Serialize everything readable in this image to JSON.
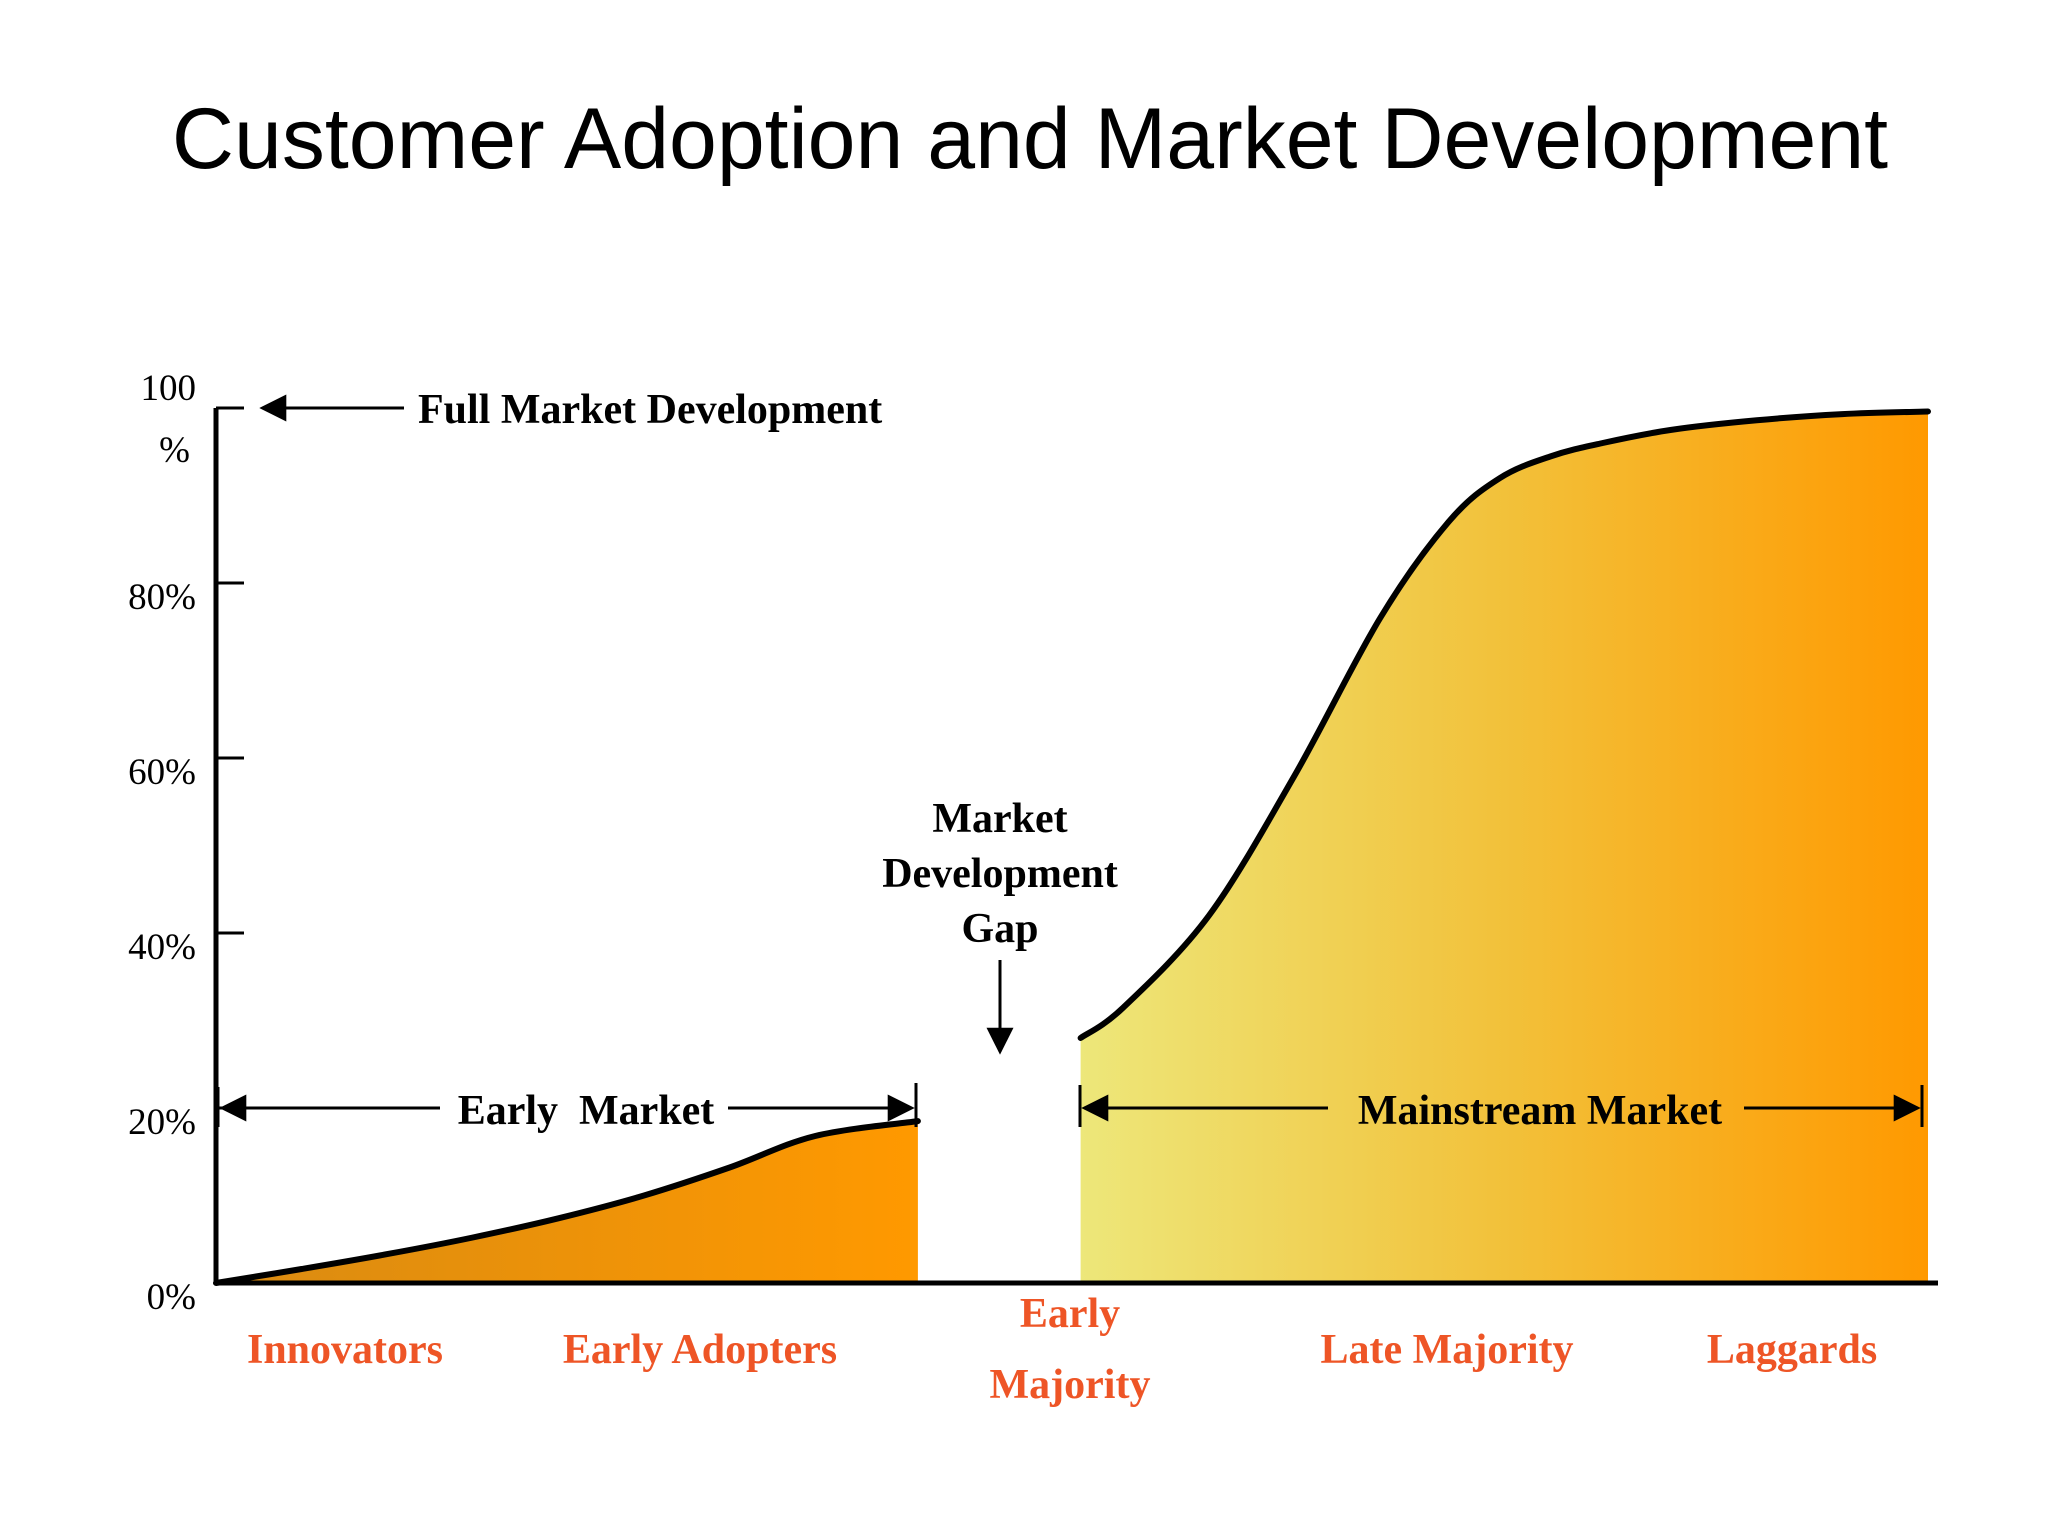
{
  "title": "Customer Adoption and Market Development",
  "colors": {
    "category_label": "#EE5526",
    "early_fill_start": "#D98B12",
    "early_fill_end": "#FF9900",
    "mainstream_fill_start": "#EDE77A",
    "mainstream_fill_mid": "#F2C13A",
    "mainstream_fill_end": "#FF9900"
  },
  "annotations": {
    "full_market": "Full Market Development",
    "early_market": "Early  Market",
    "mainstream_market": "Mainstream Market",
    "gap_line1": "Market",
    "gap_line2": "Development",
    "gap_line3": "Gap"
  },
  "chart_data": {
    "type": "area",
    "title": "Customer Adoption and Market Development",
    "xlabel": "",
    "ylabel": "",
    "ylim": [
      0,
      100
    ],
    "grid": false,
    "legend": "none",
    "y_ticks": [
      {
        "value": 100,
        "line1": "100",
        "line2": "%"
      },
      {
        "value": 80,
        "line1": "80%",
        "line2": ""
      },
      {
        "value": 60,
        "line1": "60%",
        "line2": ""
      },
      {
        "value": 40,
        "line1": "40%",
        "line2": ""
      },
      {
        "value": 20,
        "line1": "20%",
        "line2": ""
      },
      {
        "value": 0,
        "line1": "0%",
        "line2": ""
      }
    ],
    "categories": [
      {
        "line1": "Innovators",
        "line2": ""
      },
      {
        "line1": "Early Adopters",
        "line2": ""
      },
      {
        "line1": "Early",
        "line2": "Majority"
      },
      {
        "line1": "Late Majority",
        "line2": ""
      },
      {
        "line1": "Laggards",
        "line2": ""
      }
    ],
    "series": [
      {
        "segment": "early",
        "x": [
          0,
          5,
          10,
          15,
          20,
          25,
          30,
          35,
          41
        ],
        "y": [
          0,
          1.6,
          3.3,
          5.2,
          7.4,
          10,
          13.2,
          16.8,
          18.5
        ]
      },
      {
        "segment": "mainstream",
        "x": [
          50.5,
          53,
          58,
          63,
          68,
          72,
          75,
          78,
          81,
          85,
          90,
          95,
          100
        ],
        "y": [
          28,
          31.5,
          42,
          58,
          76,
          87,
          92,
          94.5,
          96,
          97.5,
          98.6,
          99.3,
          99.6
        ]
      }
    ]
  }
}
